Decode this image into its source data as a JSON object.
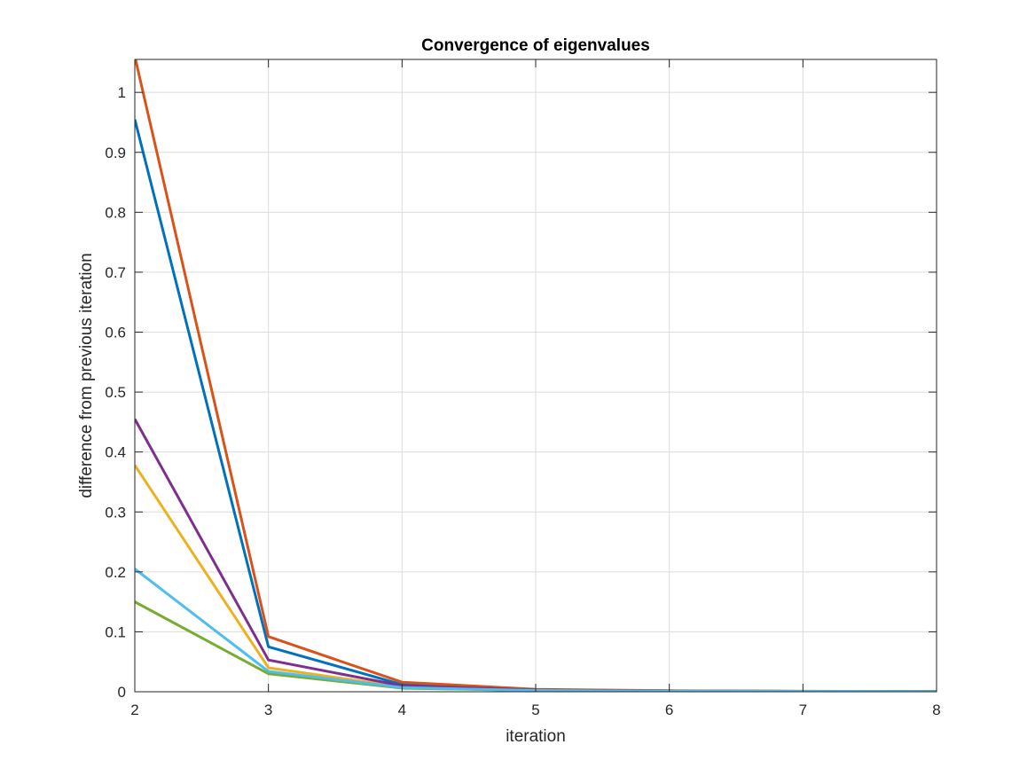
{
  "chart_data": {
    "type": "line",
    "title": "Convergence of eigenvalues",
    "xlabel": "iteration",
    "ylabel": "difference from previous iteration",
    "xlim": [
      2,
      8
    ],
    "ylim": [
      0,
      1.055
    ],
    "x_ticks": [
      "2",
      "3",
      "4",
      "5",
      "6",
      "7",
      "8"
    ],
    "y_ticks": [
      "0",
      "0.1",
      "0.2",
      "0.3",
      "0.4",
      "0.5",
      "0.6",
      "0.7",
      "0.8",
      "0.9",
      "1"
    ],
    "grid": true,
    "x": [
      2,
      3,
      4,
      5,
      6,
      7,
      8
    ],
    "series": [
      {
        "color": "#0072BD",
        "values": [
          0.955,
          0.075,
          0.012,
          0.003,
          0.0015,
          0.0008,
          0.0004
        ]
      },
      {
        "color": "#D95319",
        "values": [
          1.06,
          0.092,
          0.016,
          0.004,
          0.0018,
          0.0009,
          0.0005
        ]
      },
      {
        "color": "#EDB120",
        "values": [
          0.378,
          0.04,
          0.008,
          0.0025,
          0.0012,
          0.0006,
          0.0003
        ]
      },
      {
        "color": "#7E2F8E",
        "values": [
          0.455,
          0.053,
          0.01,
          0.003,
          0.0014,
          0.0007,
          0.0003
        ]
      },
      {
        "color": "#77AC30",
        "values": [
          0.15,
          0.03,
          0.006,
          0.002,
          0.001,
          0.0005,
          0.0002
        ]
      },
      {
        "color": "#4DBEEE",
        "values": [
          0.205,
          0.034,
          0.007,
          0.002,
          0.001,
          0.0005,
          0.0002
        ]
      }
    ]
  }
}
